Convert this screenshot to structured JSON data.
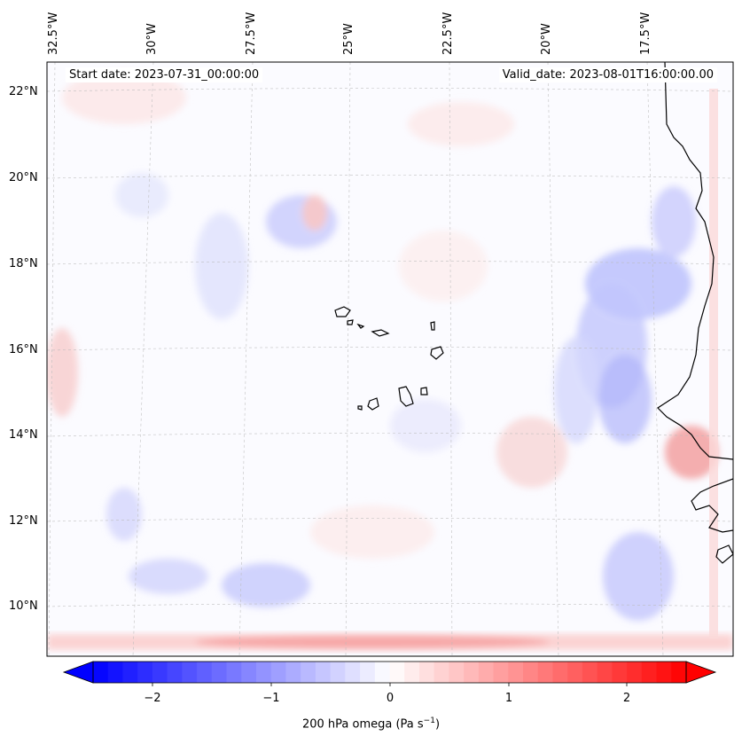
{
  "map": {
    "lon_labels": [
      "32.5°W",
      "30°W",
      "27.5°W",
      "25°W",
      "22.5°W",
      "20°W",
      "17.5°W"
    ],
    "lat_labels": [
      "22°N",
      "20°N",
      "18°N",
      "16°N",
      "14°N",
      "12°N",
      "10°N"
    ],
    "start_date": "Start date: 2023-07-31_00:00:00",
    "valid_date": "Valid_date: 2023-08-01T16:00:00.00",
    "field": "200 hPa omega",
    "gridlines": true,
    "coastlines": true,
    "colormap": "bwr"
  },
  "colorbar": {
    "title_prefix": "200 hPa omega (Pa s",
    "title_exp": "−1",
    "title_suffix": ")",
    "tick_labels": [
      "−2",
      "−1",
      "0",
      "1",
      "2"
    ],
    "range": [
      -2.7,
      2.7
    ],
    "extend": "both",
    "colors": {
      "min": "#0000ff",
      "mid": "#ffffff",
      "max": "#ff0000"
    }
  }
}
